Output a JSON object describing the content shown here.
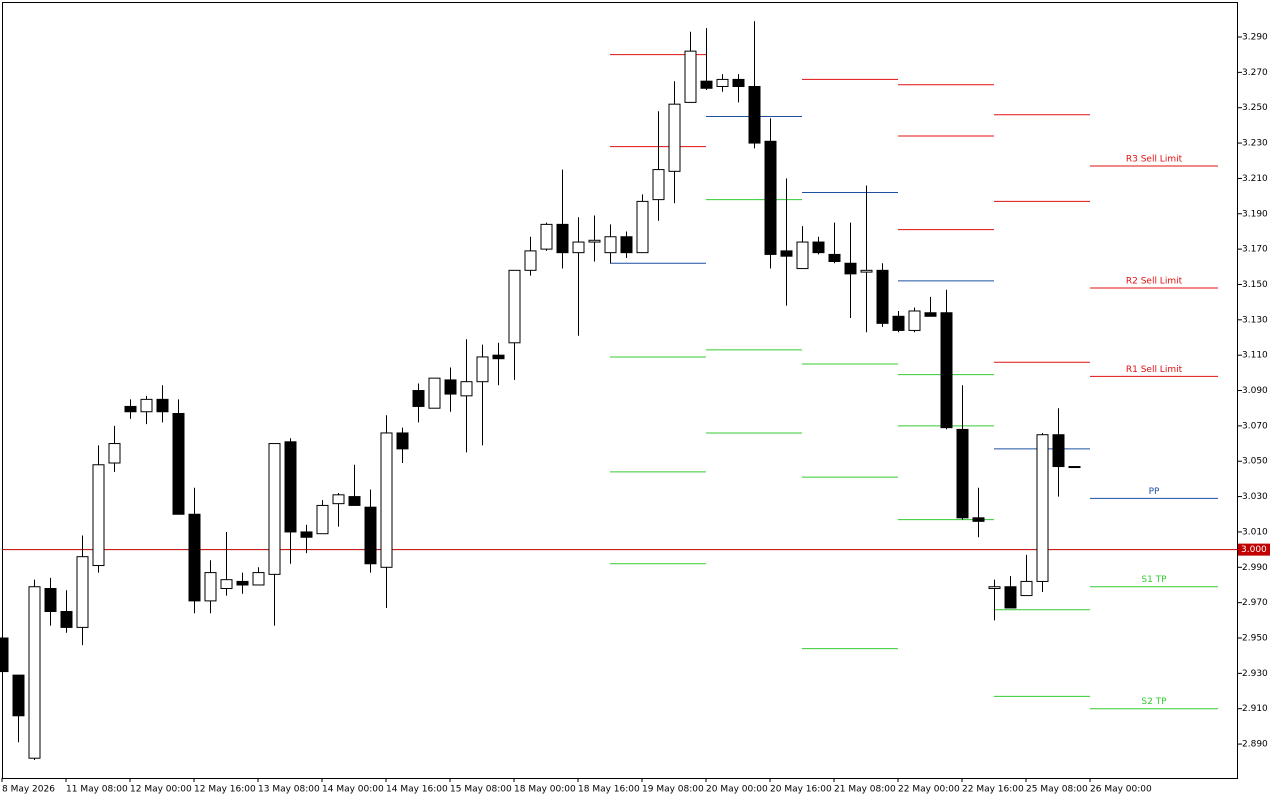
{
  "chart_data": {
    "type": "candlestick",
    "categories": [
      "8 May 2026",
      null,
      null,
      null,
      "11 May 08:00",
      null,
      null,
      null,
      "12 May 00:00",
      null,
      null,
      null,
      "12 May 16:00",
      null,
      null,
      null,
      "13 May 08:00",
      null,
      null,
      null,
      "14 May 00:00",
      null,
      null,
      null,
      "14 May 16:00",
      null,
      null,
      null,
      "15 May 08:00",
      null,
      null,
      null,
      "18 May 00:00",
      null,
      null,
      null,
      "18 May 16:00",
      null,
      null,
      null,
      "19 May 08:00",
      null,
      null,
      null,
      "20 May 00:00",
      null,
      null,
      null,
      "20 May 16:00",
      null,
      null,
      null,
      "21 May 08:00",
      null,
      null,
      null,
      "22 May 00:00",
      null,
      null,
      null,
      "22 May 16:00",
      null,
      null,
      null,
      "25 May 08:00",
      null,
      null,
      null,
      "26 May 00:00",
      null,
      null,
      null,
      null,
      null,
      null,
      null,
      null
    ],
    "open": [
      2.95,
      2.929,
      2.882,
      2.978,
      2.965,
      2.956,
      2.991,
      3.049,
      3.081,
      3.078,
      3.085,
      3.077,
      3.02,
      2.971,
      2.978,
      2.982,
      2.98,
      2.986,
      3.061,
      3.01,
      3.009,
      3.026,
      3.03,
      3.024,
      2.99,
      3.066,
      3.09,
      3.08,
      3.096,
      3.087,
      3.095,
      3.11,
      3.117,
      3.158,
      3.17,
      3.184,
      3.168,
      3.174,
      3.168,
      3.177,
      3.168,
      3.198,
      3.214,
      3.253,
      3.265,
      3.262,
      3.266,
      3.262,
      3.231,
      3.169,
      3.159,
      3.174,
      3.167,
      3.162,
      3.157,
      3.158,
      3.132,
      3.124,
      3.134,
      3.134,
      3.068,
      3.018,
      2.978,
      2.979,
      2.974,
      2.982,
      3.065,
      3.047,
      null,
      null,
      null,
      null,
      null,
      null,
      null,
      null,
      null
    ],
    "high": [
      2.95,
      2.929,
      2.983,
      2.984,
      2.977,
      3.008,
      3.059,
      3.07,
      3.085,
      3.087,
      3.093,
      3.085,
      3.035,
      2.994,
      3.01,
      2.987,
      2.99,
      3.06,
      3.063,
      3.014,
      3.028,
      3.032,
      3.048,
      3.034,
      3.076,
      3.069,
      3.094,
      3.097,
      3.103,
      3.119,
      3.116,
      3.117,
      3.158,
      3.177,
      3.185,
      3.215,
      3.188,
      3.189,
      3.184,
      3.18,
      3.201,
      3.248,
      3.265,
      3.293,
      3.295,
      3.269,
      3.269,
      3.299,
      3.244,
      3.21,
      3.183,
      3.177,
      3.185,
      3.185,
      3.206,
      3.162,
      3.135,
      3.137,
      3.143,
      3.147,
      3.093,
      3.035,
      2.983,
      2.985,
      2.997,
      3.066,
      3.08,
      3.047,
      null,
      null,
      null,
      null,
      null,
      null,
      null,
      null,
      null
    ],
    "low": [
      2.931,
      2.891,
      2.881,
      2.957,
      2.953,
      2.946,
      2.987,
      3.044,
      3.074,
      3.071,
      3.072,
      3.02,
      2.964,
      2.964,
      2.974,
      2.975,
      2.98,
      2.957,
      2.992,
      2.998,
      3.009,
      3.013,
      3.025,
      2.987,
      2.967,
      3.049,
      3.072,
      3.08,
      3.078,
      3.055,
      3.059,
      3.093,
      3.096,
      3.155,
      3.169,
      3.159,
      3.121,
      3.163,
      3.162,
      3.165,
      3.168,
      3.186,
      3.196,
      3.253,
      3.26,
      3.259,
      3.253,
      3.227,
      3.159,
      3.138,
      3.159,
      3.167,
      3.162,
      3.131,
      3.123,
      3.126,
      3.123,
      3.123,
      3.132,
      3.068,
      3.017,
      3.007,
      2.96,
      2.967,
      2.974,
      2.976,
      3.03,
      3.047,
      null,
      null,
      null,
      null,
      null,
      null,
      null,
      null,
      null
    ],
    "close": [
      2.931,
      2.906,
      2.979,
      2.965,
      2.956,
      2.996,
      3.048,
      3.06,
      3.078,
      3.085,
      3.078,
      3.02,
      2.971,
      2.987,
      2.983,
      2.98,
      2.987,
      3.06,
      3.01,
      3.007,
      3.025,
      3.031,
      3.025,
      2.992,
      3.066,
      3.057,
      3.081,
      3.097,
      3.088,
      3.095,
      3.109,
      3.108,
      3.158,
      3.169,
      3.184,
      3.168,
      3.174,
      3.175,
      3.177,
      3.168,
      3.197,
      3.215,
      3.252,
      3.282,
      3.261,
      3.266,
      3.262,
      3.23,
      3.167,
      3.166,
      3.174,
      3.168,
      3.163,
      3.156,
      3.158,
      3.128,
      3.124,
      3.135,
      3.132,
      3.069,
      3.018,
      3.016,
      2.979,
      2.967,
      2.982,
      3.065,
      3.047,
      3.047,
      null,
      null,
      null,
      null,
      null,
      null,
      null,
      null,
      null
    ],
    "up_color": "#ffffff",
    "down_color": "#000000",
    "ylim": [
      2.8708,
      3.3098
    ],
    "yticks": [
      {
        "value": 3.29,
        "label": "3.290"
      },
      {
        "value": 3.27,
        "label": "3.270"
      },
      {
        "value": 3.25,
        "label": "3.250"
      },
      {
        "value": 3.23,
        "label": "3.230"
      },
      {
        "value": 3.21,
        "label": "3.210"
      },
      {
        "value": 3.19,
        "label": "3.190"
      },
      {
        "value": 3.17,
        "label": "3.170"
      },
      {
        "value": 3.15,
        "label": "3.150"
      },
      {
        "value": 3.13,
        "label": "3.130"
      },
      {
        "value": 3.11,
        "label": "3.110"
      },
      {
        "value": 3.09,
        "label": "3.090"
      },
      {
        "value": 3.07,
        "label": "3.070"
      },
      {
        "value": 3.05,
        "label": "3.050"
      },
      {
        "value": 3.03,
        "label": "3.030"
      },
      {
        "value": 3.01,
        "label": "3.010"
      },
      {
        "value": 2.99,
        "label": "2.990"
      },
      {
        "value": 2.97,
        "label": "2.970"
      },
      {
        "value": 2.95,
        "label": "2.950"
      },
      {
        "value": 2.93,
        "label": "2.930"
      },
      {
        "value": 2.91,
        "label": "2.910"
      },
      {
        "value": 2.89,
        "label": "2.890"
      }
    ],
    "current_price": {
      "value": 3.0,
      "label": "3.000",
      "color": "#c00000"
    },
    "pivot_days": [
      {
        "from": 38,
        "to": 44,
        "levels": [
          {
            "value": 3.28,
            "color": "#e01010"
          },
          {
            "value": 3.228,
            "color": "#e01010"
          },
          {
            "value": 3.162,
            "color": "#1f4fa0"
          },
          {
            "value": 3.109,
            "color": "#33cc33"
          },
          {
            "value": 3.044,
            "color": "#33cc33"
          },
          {
            "value": 2.992,
            "color": "#33cc33"
          }
        ]
      },
      {
        "from": 44,
        "to": 50,
        "levels": [
          {
            "value": 3.245,
            "color": "#1f4fa0"
          },
          {
            "value": 3.198,
            "color": "#33cc33"
          },
          {
            "value": 3.113,
            "color": "#33cc33"
          },
          {
            "value": 3.066,
            "color": "#33cc33"
          }
        ]
      },
      {
        "from": 50,
        "to": 56,
        "levels": [
          {
            "value": 3.266,
            "color": "#e01010"
          },
          {
            "value": 3.202,
            "color": "#1f4fa0"
          },
          {
            "value": 3.105,
            "color": "#33cc33"
          },
          {
            "value": 3.041,
            "color": "#33cc33"
          },
          {
            "value": 2.944,
            "color": "#33cc33"
          }
        ]
      },
      {
        "from": 56,
        "to": 62,
        "levels": [
          {
            "value": 3.263,
            "color": "#e01010"
          },
          {
            "value": 3.234,
            "color": "#e01010"
          },
          {
            "value": 3.181,
            "color": "#e01010"
          },
          {
            "value": 3.152,
            "color": "#1f4fa0"
          },
          {
            "value": 3.099,
            "color": "#33cc33"
          },
          {
            "value": 3.07,
            "color": "#33cc33"
          },
          {
            "value": 3.017,
            "color": "#33cc33"
          }
        ]
      },
      {
        "from": 62,
        "to": 68,
        "levels": [
          {
            "value": 3.246,
            "color": "#e01010"
          },
          {
            "value": 3.197,
            "color": "#e01010"
          },
          {
            "value": 3.106,
            "color": "#e01010"
          },
          {
            "value": 3.057,
            "color": "#1f4fa0"
          },
          {
            "value": 2.966,
            "color": "#33cc33"
          },
          {
            "value": 2.917,
            "color": "#33cc33"
          }
        ]
      },
      {
        "from": 68,
        "to": 76,
        "levels": [
          {
            "value": 3.217,
            "color": "#e01010",
            "label": "R3 Sell Limit"
          },
          {
            "value": 3.148,
            "color": "#e01010",
            "label": "R2 Sell Limit"
          },
          {
            "value": 3.098,
            "color": "#e01010",
            "label": "R1 Sell Limit"
          },
          {
            "value": 3.029,
            "color": "#1f4fa0",
            "label": "PP"
          },
          {
            "value": 2.979,
            "color": "#33cc33",
            "label": "S1 TP"
          },
          {
            "value": 2.91,
            "color": "#33cc33",
            "label": "S2 TP"
          }
        ]
      }
    ]
  }
}
